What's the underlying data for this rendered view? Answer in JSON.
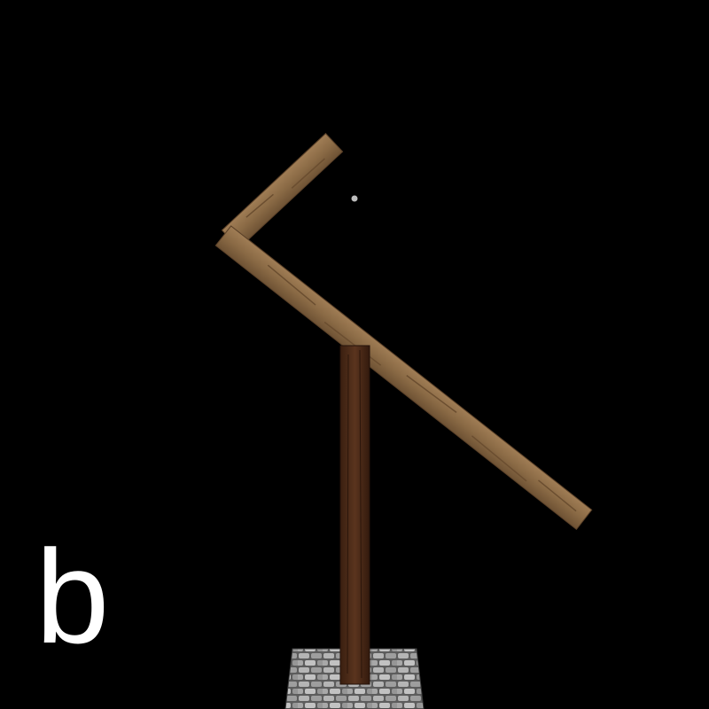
{
  "panel_label": "b",
  "scene": {
    "background_color": "#000000",
    "pivot_marker_color": "#bdbdbd",
    "plank_color": "#8a6a45",
    "post_color": "#4a2a18",
    "base_color": "#8c8c8c"
  }
}
